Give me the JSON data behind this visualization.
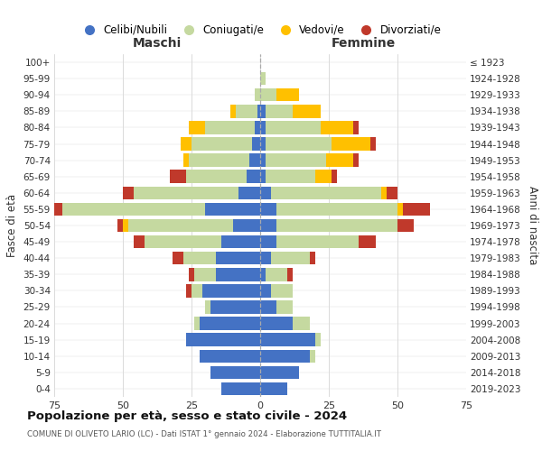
{
  "age_groups": [
    "0-4",
    "5-9",
    "10-14",
    "15-19",
    "20-24",
    "25-29",
    "30-34",
    "35-39",
    "40-44",
    "45-49",
    "50-54",
    "55-59",
    "60-64",
    "65-69",
    "70-74",
    "75-79",
    "80-84",
    "85-89",
    "90-94",
    "95-99",
    "100+"
  ],
  "birth_years": [
    "2019-2023",
    "2014-2018",
    "2009-2013",
    "2004-2008",
    "1999-2003",
    "1994-1998",
    "1989-1993",
    "1984-1988",
    "1979-1983",
    "1974-1978",
    "1969-1973",
    "1964-1968",
    "1959-1963",
    "1954-1958",
    "1949-1953",
    "1944-1948",
    "1939-1943",
    "1934-1938",
    "1929-1933",
    "1924-1928",
    "≤ 1923"
  ],
  "maschi": {
    "celibi": [
      14,
      18,
      22,
      27,
      22,
      18,
      21,
      16,
      16,
      14,
      10,
      20,
      8,
      5,
      4,
      3,
      2,
      1,
      0,
      0,
      0
    ],
    "coniugati": [
      0,
      0,
      0,
      0,
      2,
      2,
      4,
      8,
      12,
      28,
      38,
      52,
      38,
      22,
      22,
      22,
      18,
      8,
      2,
      0,
      0
    ],
    "vedovi": [
      0,
      0,
      0,
      0,
      0,
      0,
      0,
      0,
      0,
      0,
      2,
      0,
      0,
      0,
      2,
      4,
      6,
      2,
      0,
      0,
      0
    ],
    "divorziati": [
      0,
      0,
      0,
      0,
      0,
      0,
      2,
      2,
      4,
      4,
      2,
      10,
      4,
      6,
      0,
      0,
      0,
      0,
      0,
      0,
      0
    ]
  },
  "femmine": {
    "nubili": [
      10,
      14,
      18,
      20,
      12,
      6,
      4,
      2,
      4,
      6,
      6,
      6,
      4,
      2,
      2,
      2,
      2,
      2,
      0,
      0,
      0
    ],
    "coniugate": [
      0,
      0,
      2,
      2,
      6,
      6,
      8,
      8,
      14,
      30,
      44,
      44,
      40,
      18,
      22,
      24,
      20,
      10,
      6,
      2,
      0
    ],
    "vedove": [
      0,
      0,
      0,
      0,
      0,
      0,
      0,
      0,
      0,
      0,
      0,
      2,
      2,
      6,
      10,
      14,
      12,
      10,
      8,
      0,
      0
    ],
    "divorziate": [
      0,
      0,
      0,
      0,
      0,
      0,
      0,
      2,
      2,
      6,
      6,
      10,
      4,
      2,
      2,
      2,
      2,
      0,
      0,
      0,
      0
    ]
  },
  "colors": {
    "celibi": "#4472c4",
    "coniugati": "#c5d9a0",
    "vedovi": "#ffc000",
    "divorziati": "#c0392b"
  },
  "xlim": 75,
  "title": "Popolazione per età, sesso e stato civile - 2024",
  "subtitle": "COMUNE DI OLIVETO LARIO (LC) - Dati ISTAT 1° gennaio 2024 - Elaborazione TUTTITALIA.IT",
  "ylabel_left": "Fasce di età",
  "ylabel_right": "Anni di nascita",
  "xlabel_left": "Maschi",
  "xlabel_right": "Femmine",
  "legend_labels": [
    "Celibi/Nubili",
    "Coniugati/e",
    "Vedovi/e",
    "Divorziati/e"
  ]
}
